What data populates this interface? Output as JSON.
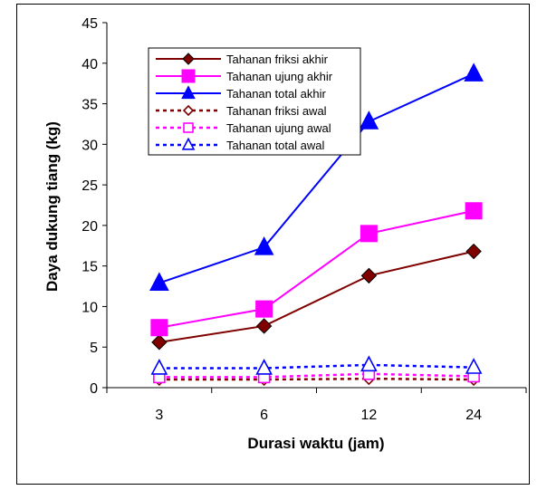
{
  "chart_data": {
    "type": "line",
    "categories": [
      "3",
      "6",
      "12",
      "24"
    ],
    "xlabel": "Durasi waktu (jam)",
    "ylabel": "Daya dukung tiang (kg)",
    "ylim": [
      0,
      45
    ],
    "yticks": [
      0,
      5,
      10,
      15,
      20,
      25,
      30,
      35,
      40,
      45
    ],
    "grid": false,
    "legend_position": "top-center",
    "series": [
      {
        "name": "Tahanan friksi akhir",
        "values": [
          5.6,
          7.6,
          13.8,
          16.8
        ],
        "color": "#800000",
        "marker": "diamond",
        "filled": true,
        "dashed": false
      },
      {
        "name": "Tahanan ujung akhir",
        "values": [
          7.4,
          9.7,
          19.0,
          21.8
        ],
        "color": "#FF00FF",
        "marker": "square",
        "filled": true,
        "dashed": false
      },
      {
        "name": "Tahanan total akhir",
        "values": [
          12.9,
          17.3,
          32.8,
          38.7
        ],
        "color": "#0000FF",
        "marker": "triangle",
        "filled": true,
        "dashed": false
      },
      {
        "name": "Tahanan friksi awal",
        "values": [
          1.0,
          1.0,
          1.1,
          1.0
        ],
        "color": "#800000",
        "marker": "diamond",
        "filled": false,
        "dashed": true
      },
      {
        "name": "Tahanan ujung awal",
        "values": [
          1.3,
          1.3,
          1.7,
          1.4
        ],
        "color": "#FF00FF",
        "marker": "square",
        "filled": false,
        "dashed": true
      },
      {
        "name": "Tahanan total awal",
        "values": [
          2.4,
          2.4,
          2.8,
          2.5
        ],
        "color": "#0000FF",
        "marker": "triangle",
        "filled": false,
        "dashed": true
      }
    ]
  }
}
